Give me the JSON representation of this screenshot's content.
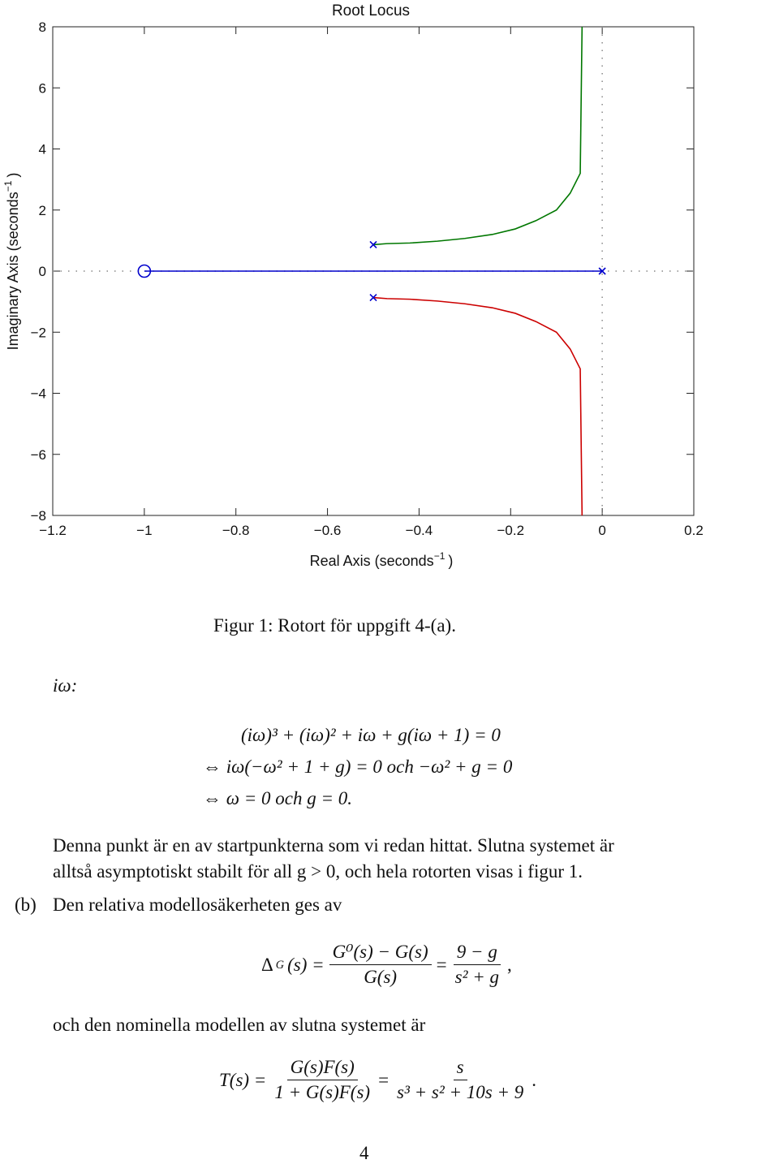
{
  "chart_data": {
    "type": "line",
    "title": "Root Locus",
    "xlabel": "Real Axis (seconds",
    "xlabel_sup": "−1",
    "xlabel_end": ")",
    "ylabel": "Imaginary Axis (seconds",
    "ylabel_sup": "−1",
    "ylabel_end": ")",
    "xlim": [
      -1.2,
      0.2
    ],
    "ylim": [
      -8,
      8
    ],
    "xticks": [
      -1.2,
      -1,
      -0.8,
      -0.6,
      -0.4,
      -0.2,
      0,
      0.2
    ],
    "xtick_labels": [
      "−1.2",
      "−1",
      "−0.8",
      "−0.6",
      "−0.4",
      "−0.2",
      "0",
      "0.2"
    ],
    "yticks": [
      -8,
      -6,
      -4,
      -2,
      0,
      2,
      4,
      6,
      8
    ],
    "ytick_labels": [
      "−8",
      "−6",
      "−4",
      "−2",
      "0",
      "2",
      "4",
      "6",
      "8"
    ],
    "grid": false,
    "poles": [
      [
        -0.5,
        0.866
      ],
      [
        -0.5,
        -0.866
      ],
      [
        0,
        0
      ]
    ],
    "zeros": [
      [
        -1,
        0
      ]
    ],
    "series": [
      {
        "color": "#0000cc",
        "x": [
          -1,
          0
        ],
        "y": [
          0,
          0
        ]
      },
      {
        "color": "#007700",
        "x": [
          -0.5,
          -0.47,
          -0.42,
          -0.36,
          -0.3,
          -0.24,
          -0.19,
          -0.145,
          -0.1,
          -0.07,
          -0.048,
          -0.044
        ],
        "y": [
          0.866,
          0.9,
          0.92,
          0.98,
          1.07,
          1.2,
          1.38,
          1.65,
          2.0,
          2.55,
          3.2,
          8
        ]
      },
      {
        "color": "#cc0000",
        "x": [
          -0.5,
          -0.47,
          -0.42,
          -0.36,
          -0.3,
          -0.24,
          -0.19,
          -0.145,
          -0.1,
          -0.07,
          -0.048,
          -0.044
        ],
        "y": [
          -0.866,
          -0.9,
          -0.92,
          -0.98,
          -1.07,
          -1.2,
          -1.38,
          -1.65,
          -2.0,
          -2.55,
          -3.2,
          -8
        ]
      }
    ],
    "colors": {
      "zero": "#0000cc",
      "pole": "#0000cc",
      "axis": "#222222",
      "dotted": "#888888"
    }
  },
  "caption": "Figur 1: Rotort för uppgift 4-(a).",
  "iw_label": "iω:",
  "eq1": "(iω)³ + (iω)² + iω + g(iω + 1) = 0",
  "eq2": "⇔ iω(−ω² + 1 + g) = 0 och −ω² + g = 0",
  "eq3": "⇔ ω = 0 och g = 0.",
  "para1_line1": "Denna punkt är en av startpunkterna som vi redan hittat. Slutna systemet är",
  "para1_line2": "alltså asymptotiskt stabilt för all g > 0, och hela rotorten visas i figur 1.",
  "b_label": "(b)",
  "b_text": "Den relativa modellosäkerheten ges av",
  "delta_lhs": "Δ",
  "delta_sub": "G",
  "delta_arg": "(s) =",
  "frac1_num": "G⁰(s) − G(s)",
  "frac1_den": "G(s)",
  "eq_sign": "=",
  "frac2_num": "9 − g",
  "frac2_den": "s² + g",
  "comma": ",",
  "nominal_text": "och den nominella modellen av slutna systemet är",
  "T_lhs": "T(s) =",
  "frac3_num": "G(s)F(s)",
  "frac3_den": "1 + G(s)F(s)",
  "frac4_num": "s",
  "frac4_den": "s³ + s² + 10s + 9",
  "period": ".",
  "page_number": "4"
}
